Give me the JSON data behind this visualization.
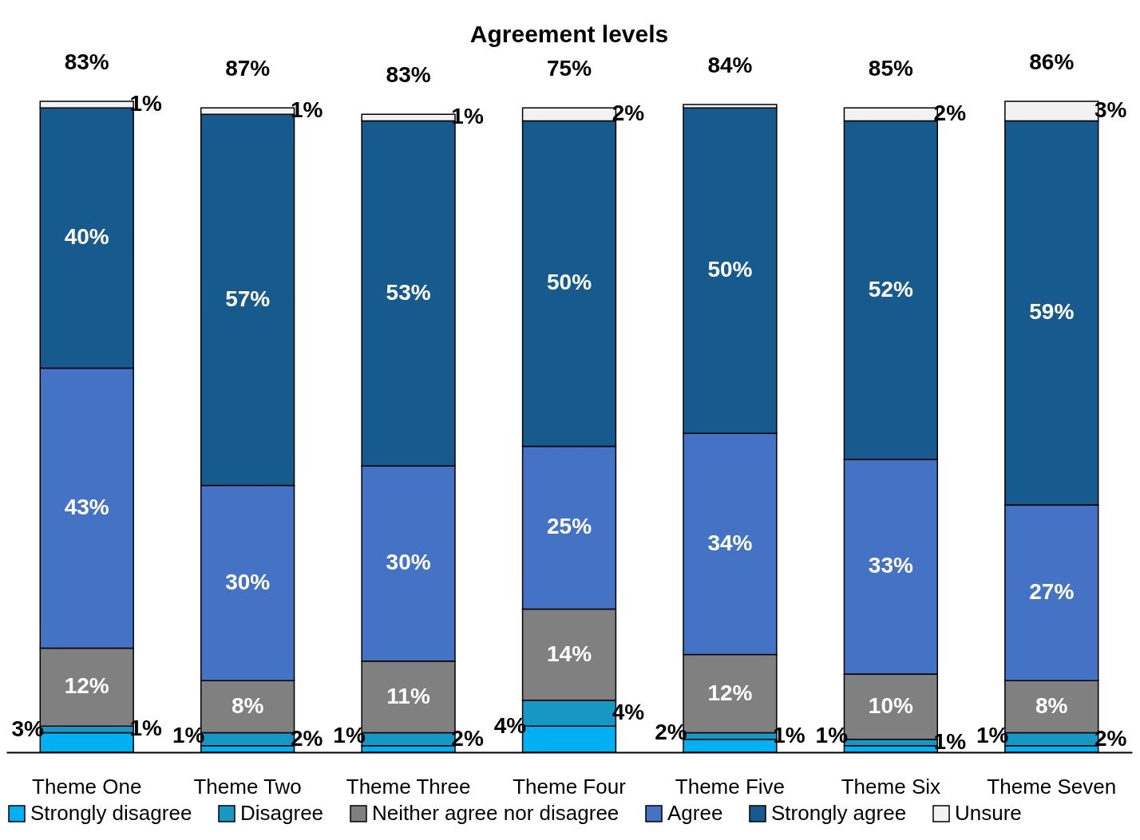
{
  "chart_data": {
    "type": "bar",
    "title": "Agreement levels",
    "stacked": true,
    "categories": [
      "Theme One",
      "Theme Two",
      "Theme Three",
      "Theme Four",
      "Theme Five",
      "Theme Six",
      "Theme Seven"
    ],
    "series": [
      {
        "name": "Strongly disagree",
        "color": "#00b0f0",
        "values": [
          3,
          1,
          1,
          4,
          2,
          1,
          1
        ],
        "value_labels": [
          "3%",
          "1%",
          "1%",
          "4%",
          "2%",
          "1%",
          "1%"
        ]
      },
      {
        "name": "Disagree",
        "color": "#1598c4",
        "values": [
          1,
          2,
          2,
          4,
          1,
          1,
          2
        ],
        "value_labels": [
          "1%",
          "2%",
          "2%",
          "4%",
          "1%",
          "1%",
          "2%"
        ]
      },
      {
        "name": "Neither agree nor disagree",
        "color": "#808080",
        "values": [
          12,
          8,
          11,
          14,
          12,
          10,
          8
        ],
        "value_labels": [
          "12%",
          "8%",
          "11%",
          "14%",
          "12%",
          "10%",
          "8%"
        ]
      },
      {
        "name": "Agree",
        "color": "#4472c4",
        "values": [
          43,
          30,
          30,
          25,
          34,
          33,
          27
        ],
        "value_labels": [
          "43%",
          "30%",
          "30%",
          "25%",
          "34%",
          "33%",
          "27%"
        ]
      },
      {
        "name": "Strongly agree",
        "color": "#175b8e",
        "values": [
          40,
          57,
          53,
          50,
          50,
          52,
          59
        ],
        "value_labels": [
          "40%",
          "57%",
          "53%",
          "50%",
          "50%",
          "52%",
          "59%"
        ]
      },
      {
        "name": "Unsure",
        "color": "#f2f2f2",
        "values": [
          1,
          1,
          1,
          2,
          0.5,
          2,
          3
        ],
        "value_labels": [
          "1%",
          "1%",
          "1%",
          "2%",
          null,
          "2%",
          "3%"
        ]
      }
    ],
    "annotations": [
      "83%",
      "87%",
      "83%",
      "75%",
      "84%",
      "85%",
      "86%"
    ],
    "ylim": [
      0,
      100
    ],
    "tick_labels": "x",
    "grid": false,
    "legend": "bottom"
  }
}
